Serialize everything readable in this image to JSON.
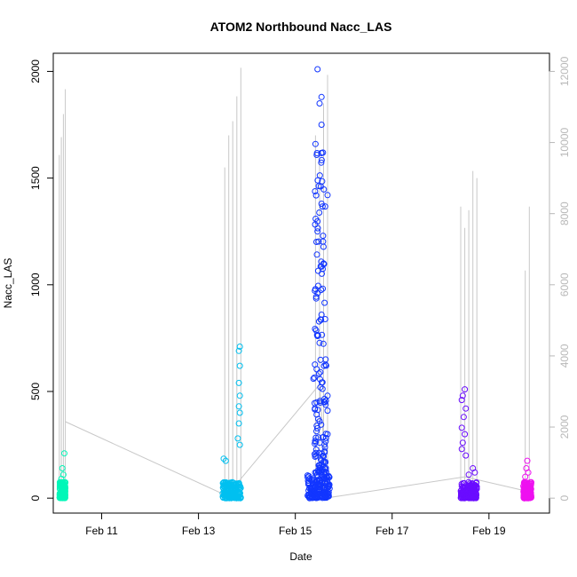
{
  "chart_data": {
    "type": "scatter",
    "title": "ATOM2 Northbound Nacc_LAS",
    "xlabel": "Date",
    "ylabel": "Nacc_LAS",
    "x_axis": {
      "type": "date",
      "range": [
        "2016-02-10T00:00",
        "2016-02-20T06:00"
      ],
      "ticks": [
        {
          "date": "2016-02-11",
          "label": "Feb 11"
        },
        {
          "date": "2016-02-13",
          "label": "Feb 13"
        },
        {
          "date": "2016-02-15",
          "label": "Feb 15"
        },
        {
          "date": "2016-02-17",
          "label": "Feb 17"
        },
        {
          "date": "2016-02-19",
          "label": "Feb 19"
        }
      ]
    },
    "y_axis_left": {
      "range": [
        -70,
        2085
      ],
      "ticks": [
        0,
        500,
        1000,
        1500,
        2000
      ]
    },
    "y_axis_right": {
      "range": [
        -420,
        12510
      ],
      "ticks": [
        0,
        2000,
        4000,
        6000,
        8000,
        10000,
        12000
      ],
      "color": "#b8b8b8"
    },
    "colors": {
      "background": "#ffffff",
      "frame": "#000000",
      "secondary_line": "#c8c8c8"
    },
    "series": [
      {
        "color": "#00f7b8",
        "time_range": [
          "2016-02-10T03:00",
          "2016-02-10T06:00"
        ],
        "point_samples": [
          {
            "time": "2016-02-10T05:30",
            "value": 210
          },
          {
            "time": "2016-02-10T04:30",
            "value": 140
          },
          {
            "time": "2016-02-10T05:00",
            "value": 110
          },
          {
            "time": "2016-02-10T04:00",
            "value": 90
          }
        ]
      },
      {
        "color": "#00c0f0",
        "time_range": [
          "2016-02-13T12:00",
          "2016-02-13T21:00"
        ],
        "point_samples": [
          {
            "time": "2016-02-13T20:30",
            "value": 710
          },
          {
            "time": "2016-02-13T20:00",
            "value": 690
          },
          {
            "time": "2016-02-13T20:30",
            "value": 620
          },
          {
            "time": "2016-02-13T20:00",
            "value": 540
          },
          {
            "time": "2016-02-13T20:30",
            "value": 480
          },
          {
            "time": "2016-02-13T20:00",
            "value": 430
          },
          {
            "time": "2016-02-13T20:30",
            "value": 400
          },
          {
            "time": "2016-02-13T20:00",
            "value": 350
          },
          {
            "time": "2016-02-13T19:30",
            "value": 280
          },
          {
            "time": "2016-02-13T20:30",
            "value": 250
          },
          {
            "time": "2016-02-13T12:30",
            "value": 185
          },
          {
            "time": "2016-02-13T13:30",
            "value": 175
          }
        ]
      },
      {
        "color": "#1236ff",
        "time_range": [
          "2016-02-15T06:00",
          "2016-02-15T17:00"
        ],
        "point_samples": [
          {
            "time": "2016-02-15T11:00",
            "value": 2010
          },
          {
            "time": "2016-02-15T13:00",
            "value": 1880
          },
          {
            "time": "2016-02-15T12:00",
            "value": 1850
          },
          {
            "time": "2016-02-15T13:00",
            "value": 1750
          },
          {
            "time": "2016-02-15T10:00",
            "value": 1660
          },
          {
            "time": "2016-02-15T16:00",
            "value": 1420
          },
          {
            "time": "2016-02-15T13:00",
            "value": 1380
          },
          {
            "time": "2016-02-15T11:00",
            "value": 1250
          },
          {
            "time": "2016-02-15T14:00",
            "value": 1100
          },
          {
            "time": "2016-02-15T10:00",
            "value": 980
          },
          {
            "time": "2016-02-15T13:00",
            "value": 860
          },
          {
            "time": "2016-02-15T11:00",
            "value": 760
          },
          {
            "time": "2016-02-15T15:00",
            "value": 650
          },
          {
            "time": "2016-02-15T09:00",
            "value": 560
          },
          {
            "time": "2016-02-15T16:00",
            "value": 480
          },
          {
            "time": "2016-02-15T16:00",
            "value": 410
          },
          {
            "time": "2016-02-15T12:00",
            "value": 360
          },
          {
            "time": "2016-02-15T16:00",
            "value": 300
          }
        ]
      },
      {
        "color": "#6a0cff",
        "time_range": [
          "2016-02-18T10:00",
          "2016-02-18T18:00"
        ],
        "point_samples": [
          {
            "time": "2016-02-18T12:00",
            "value": 510
          },
          {
            "time": "2016-02-18T11:00",
            "value": 480
          },
          {
            "time": "2016-02-18T10:30",
            "value": 460
          },
          {
            "time": "2016-02-18T12:30",
            "value": 420
          },
          {
            "time": "2016-02-18T11:30",
            "value": 380
          },
          {
            "time": "2016-02-18T10:30",
            "value": 330
          },
          {
            "time": "2016-02-18T12:00",
            "value": 300
          },
          {
            "time": "2016-02-18T11:00",
            "value": 260
          },
          {
            "time": "2016-02-18T10:30",
            "value": 230
          },
          {
            "time": "2016-02-18T12:30",
            "value": 200
          },
          {
            "time": "2016-02-18T16:00",
            "value": 140
          },
          {
            "time": "2016-02-18T17:00",
            "value": 120
          },
          {
            "time": "2016-02-18T14:00",
            "value": 110
          }
        ]
      },
      {
        "color": "#ee11f0",
        "time_range": [
          "2016-02-19T17:00",
          "2016-02-19T21:00"
        ],
        "point_samples": [
          {
            "time": "2016-02-19T19:00",
            "value": 175
          },
          {
            "time": "2016-02-19T18:30",
            "value": 140
          },
          {
            "time": "2016-02-19T19:30",
            "value": 120
          },
          {
            "time": "2016-02-19T18:00",
            "value": 100
          }
        ]
      }
    ],
    "secondary_series": {
      "axis": "right",
      "color": "#c8c8c8",
      "spikes": [
        {
          "time": "2016-02-10T03:00",
          "value": 9650
        },
        {
          "time": "2016-02-10T04:00",
          "value": 10150
        },
        {
          "time": "2016-02-10T05:00",
          "value": 10800
        },
        {
          "time": "2016-02-10T06:00",
          "value": 11500
        },
        {
          "time": "2016-02-13T13:00",
          "value": 9300
        },
        {
          "time": "2016-02-13T15:00",
          "value": 10200
        },
        {
          "time": "2016-02-13T17:00",
          "value": 10600
        },
        {
          "time": "2016-02-13T19:00",
          "value": 11300
        },
        {
          "time": "2016-02-13T21:00",
          "value": 12100
        },
        {
          "time": "2016-02-15T10:00",
          "value": 10200
        },
        {
          "time": "2016-02-15T12:00",
          "value": 9700
        },
        {
          "time": "2016-02-15T14:00",
          "value": 11100
        },
        {
          "time": "2016-02-15T16:00",
          "value": 11900
        },
        {
          "time": "2016-02-18T10:00",
          "value": 8200
        },
        {
          "time": "2016-02-18T12:00",
          "value": 7600
        },
        {
          "time": "2016-02-18T14:00",
          "value": 8100
        },
        {
          "time": "2016-02-18T16:00",
          "value": 9200
        },
        {
          "time": "2016-02-18T18:00",
          "value": 9000
        },
        {
          "time": "2016-02-19T18:00",
          "value": 6400
        },
        {
          "time": "2016-02-19T20:00",
          "value": 8200
        }
      ],
      "connectors": [
        {
          "time": "2016-02-10T06:00",
          "value": 2150
        },
        {
          "time": "2016-02-13T14:00",
          "value": 70
        },
        {
          "time": "2016-02-15T12:00",
          "value": 3200
        },
        {
          "time": "2016-02-15T16:00",
          "value": 10
        },
        {
          "time": "2016-02-18T12:00",
          "value": 600
        },
        {
          "time": "2016-02-19T20:00",
          "value": 180
        }
      ]
    }
  }
}
